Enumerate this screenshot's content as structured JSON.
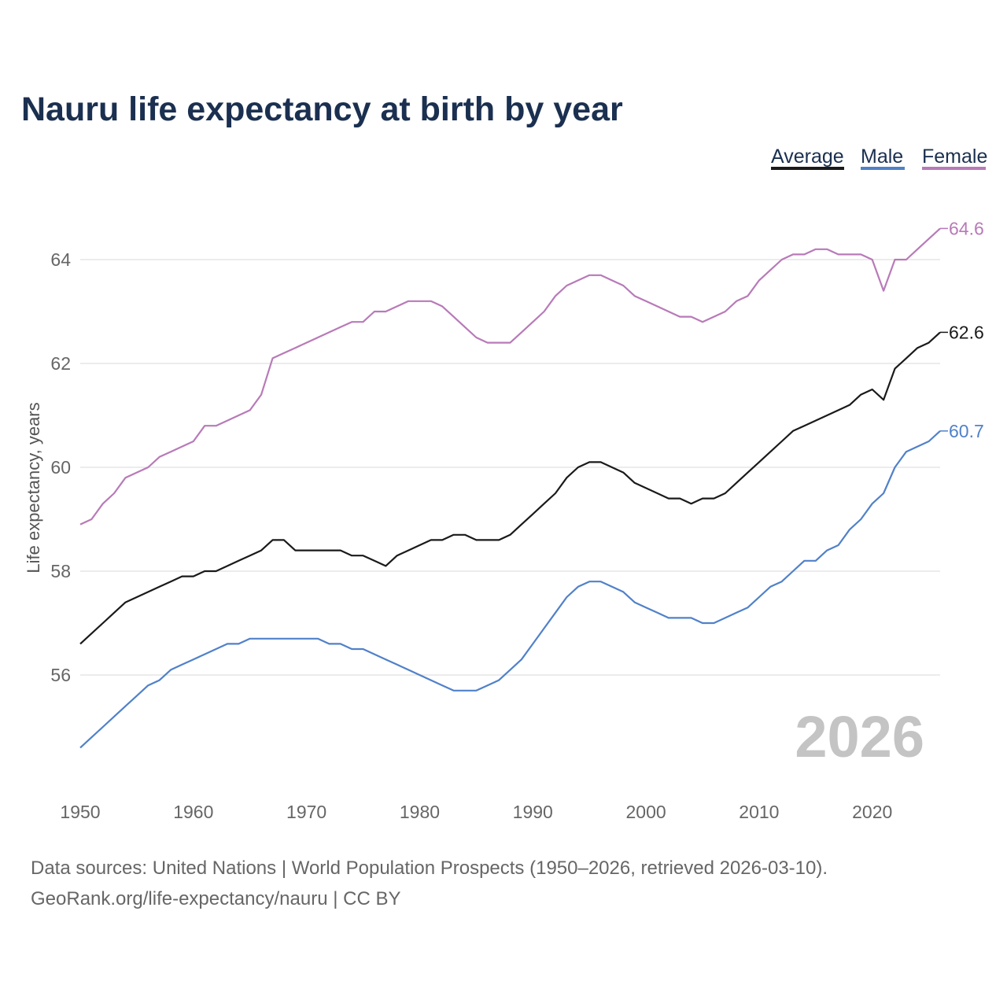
{
  "chart_data": {
    "type": "line",
    "title": "Nauru life expectancy at birth by year",
    "xlabel": "",
    "ylabel": "Life expectancy, years",
    "xlim": [
      1950,
      2026
    ],
    "ylim": [
      54.3,
      65.3
    ],
    "x_ticks": [
      1950,
      1960,
      1970,
      1980,
      1990,
      2000,
      2010,
      2020
    ],
    "y_ticks": [
      56,
      58,
      60,
      62,
      64
    ],
    "grid": true,
    "legend_position": "top-right",
    "year_watermark": "2026",
    "x_start": 1950,
    "series": [
      {
        "name": "Average",
        "color": "#1a1a1a",
        "end_label": "62.6",
        "values": [
          56.6,
          56.8,
          57.0,
          57.2,
          57.4,
          57.5,
          57.6,
          57.7,
          57.8,
          57.9,
          57.9,
          58.0,
          58.0,
          58.1,
          58.2,
          58.3,
          58.4,
          58.6,
          58.6,
          58.4,
          58.4,
          58.4,
          58.4,
          58.4,
          58.3,
          58.3,
          58.2,
          58.1,
          58.3,
          58.4,
          58.5,
          58.6,
          58.6,
          58.7,
          58.7,
          58.6,
          58.6,
          58.6,
          58.7,
          58.9,
          59.1,
          59.3,
          59.5,
          59.8,
          60.0,
          60.1,
          60.1,
          60.0,
          59.9,
          59.7,
          59.6,
          59.5,
          59.4,
          59.4,
          59.3,
          59.4,
          59.4,
          59.5,
          59.7,
          59.9,
          60.1,
          60.3,
          60.5,
          60.7,
          60.8,
          60.9,
          61.0,
          61.1,
          61.2,
          61.4,
          61.5,
          61.3,
          61.9,
          62.1,
          62.3,
          62.4,
          62.6
        ]
      },
      {
        "name": "Male",
        "color": "#5081c9",
        "end_label": "60.7",
        "values": [
          54.6,
          54.8,
          55.0,
          55.2,
          55.4,
          55.6,
          55.8,
          55.9,
          56.1,
          56.2,
          56.3,
          56.4,
          56.5,
          56.6,
          56.6,
          56.7,
          56.7,
          56.7,
          56.7,
          56.7,
          56.7,
          56.7,
          56.6,
          56.6,
          56.5,
          56.5,
          56.4,
          56.3,
          56.2,
          56.1,
          56.0,
          55.9,
          55.8,
          55.7,
          55.7,
          55.7,
          55.8,
          55.9,
          56.1,
          56.3,
          56.6,
          56.9,
          57.2,
          57.5,
          57.7,
          57.8,
          57.8,
          57.7,
          57.6,
          57.4,
          57.3,
          57.2,
          57.1,
          57.1,
          57.1,
          57.0,
          57.0,
          57.1,
          57.2,
          57.3,
          57.5,
          57.7,
          57.8,
          58.0,
          58.2,
          58.2,
          58.4,
          58.5,
          58.8,
          59.0,
          59.3,
          59.5,
          60.0,
          60.3,
          60.4,
          60.5,
          60.7
        ]
      },
      {
        "name": "Female",
        "color": "#b87ab8",
        "end_label": "64.6",
        "values": [
          58.9,
          59.0,
          59.3,
          59.5,
          59.8,
          59.9,
          60.0,
          60.2,
          60.3,
          60.4,
          60.5,
          60.8,
          60.8,
          60.9,
          61.0,
          61.1,
          61.4,
          62.1,
          62.2,
          62.3,
          62.4,
          62.5,
          62.6,
          62.7,
          62.8,
          62.8,
          63.0,
          63.0,
          63.1,
          63.2,
          63.2,
          63.2,
          63.1,
          62.9,
          62.7,
          62.5,
          62.4,
          62.4,
          62.4,
          62.6,
          62.8,
          63.0,
          63.3,
          63.5,
          63.6,
          63.7,
          63.7,
          63.6,
          63.5,
          63.3,
          63.2,
          63.1,
          63.0,
          62.9,
          62.9,
          62.8,
          62.9,
          63.0,
          63.2,
          63.3,
          63.6,
          63.8,
          64.0,
          64.1,
          64.1,
          64.2,
          64.2,
          64.1,
          64.1,
          64.1,
          64.0,
          63.4,
          64.0,
          64.0,
          64.2,
          64.4,
          64.6
        ]
      }
    ]
  },
  "footer": {
    "line1": "Data sources: United Nations | World Population Prospects (1950–2026, retrieved 2026-03-10).",
    "line2": "GeoRank.org/life-expectancy/nauru | CC BY"
  }
}
